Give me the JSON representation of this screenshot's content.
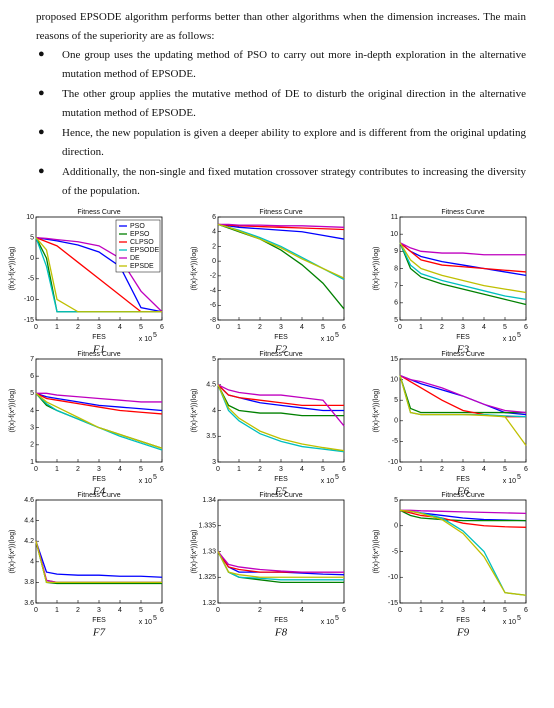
{
  "text": {
    "intro": "proposed EPSODE algorithm performs better than other algorithms when the dimension increases. The main reasons of the superiority are as follows:",
    "bullets": [
      "One group uses the updating method of PSO to carry out more in-depth exploration in the alternative mutation method of EPSODE.",
      "The other group applies the mutative method of DE to disturb the original direction in the alternative mutation method of EPSODE.",
      "Hence, the new population is given a deeper ability to explore and is different from the original updating direction.",
      "Additionally, the non-single and fixed mutation crossover strategy contributes to increasing the diversity of the population."
    ]
  },
  "chart_data": [
    {
      "type": "line",
      "title": "Fitness Curve",
      "xlabel": "FES",
      "ylabel": "(f(x)-f(x*))(log)",
      "x_scale": "x 10",
      "x_scale_exp": "5",
      "caption": "F1",
      "x": [
        0,
        0.5,
        1,
        2,
        3,
        4,
        5,
        6
      ],
      "xlim": [
        0,
        6
      ],
      "xticks": [
        0,
        1,
        2,
        3,
        4,
        5,
        6
      ],
      "ylim": [
        -15,
        10
      ],
      "yticks": [
        -15,
        -10,
        -5,
        0,
        5,
        10
      ],
      "legend": "upper right",
      "series": [
        {
          "name": "PSO",
          "color": "#0000ff",
          "values": [
            5,
            4.6,
            4.2,
            3.2,
            1.5,
            -2,
            -12,
            -13
          ]
        },
        {
          "name": "EPSO",
          "color": "#008000",
          "values": [
            5,
            0,
            -13,
            -13,
            -13,
            -13,
            -13,
            -13
          ]
        },
        {
          "name": "CLPSO",
          "color": "#ff0000",
          "values": [
            5,
            4,
            3,
            -1,
            -5,
            -9,
            -13,
            -13
          ]
        },
        {
          "name": "EPSODE",
          "color": "#00bfbf",
          "values": [
            5,
            -2,
            -13,
            -13,
            -13,
            -13,
            -13,
            -13
          ]
        },
        {
          "name": "DE",
          "color": "#bf00bf",
          "values": [
            5,
            4.8,
            4.5,
            4,
            3,
            0,
            -8,
            -13
          ]
        },
        {
          "name": "EPSDE",
          "color": "#bfbf00",
          "values": [
            5,
            2,
            -10,
            -13,
            -13,
            -13,
            -13,
            -13
          ]
        }
      ]
    },
    {
      "type": "line",
      "title": "Fitness Curve",
      "xlabel": "FES",
      "ylabel": "(f(x)-f(x*))(log)",
      "x_scale": "x 10",
      "x_scale_exp": "5",
      "caption": "F2",
      "x": [
        0,
        0.5,
        1,
        2,
        3,
        4,
        5,
        6
      ],
      "xlim": [
        0,
        6
      ],
      "xticks": [
        0,
        1,
        2,
        3,
        4,
        5,
        6
      ],
      "ylim": [
        -8,
        6
      ],
      "yticks": [
        -8,
        -6,
        -4,
        -2,
        0,
        2,
        4,
        6
      ],
      "series": [
        {
          "color": "#0000ff",
          "values": [
            5,
            4.8,
            4.6,
            4.4,
            4.2,
            4,
            3.5,
            3
          ]
        },
        {
          "color": "#008000",
          "values": [
            5,
            4.5,
            4,
            3,
            1.5,
            -0.5,
            -3,
            -6.5
          ]
        },
        {
          "color": "#ff0000",
          "values": [
            5,
            4.9,
            4.8,
            4.7,
            4.6,
            4.5,
            4.4,
            4.3
          ]
        },
        {
          "color": "#00bfbf",
          "values": [
            5,
            4.6,
            4.2,
            3.2,
            2,
            0.5,
            -1,
            -2.5
          ]
        },
        {
          "color": "#bf00bf",
          "values": [
            5,
            5,
            4.9,
            4.9,
            4.8,
            4.8,
            4.7,
            4.6
          ]
        },
        {
          "color": "#bfbf00",
          "values": [
            5,
            4.6,
            4.1,
            3,
            1.8,
            0.3,
            -1,
            -2.3
          ]
        }
      ]
    },
    {
      "type": "line",
      "title": "Fitness Curve",
      "xlabel": "FES",
      "ylabel": "(f(x)-f(x*))(log)",
      "x_scale": "x 10",
      "x_scale_exp": "5",
      "caption": "F3",
      "x": [
        0,
        0.5,
        1,
        2,
        3,
        4,
        5,
        6
      ],
      "xlim": [
        0,
        6
      ],
      "xticks": [
        0,
        1,
        2,
        3,
        4,
        5,
        6
      ],
      "ylim": [
        5,
        11
      ],
      "yticks": [
        5,
        6,
        7,
        8,
        9,
        10,
        11
      ],
      "series": [
        {
          "color": "#0000ff",
          "values": [
            9.5,
            9,
            8.7,
            8.4,
            8.2,
            8,
            7.8,
            7.6
          ]
        },
        {
          "color": "#008000",
          "values": [
            9.5,
            8,
            7.5,
            7.1,
            6.8,
            6.5,
            6.2,
            5.9
          ]
        },
        {
          "color": "#ff0000",
          "values": [
            9.5,
            9,
            8.5,
            8.2,
            8.1,
            8,
            7.9,
            7.8
          ]
        },
        {
          "color": "#00bfbf",
          "values": [
            9.5,
            8.2,
            7.7,
            7.3,
            7,
            6.7,
            6.4,
            6.2
          ]
        },
        {
          "color": "#bf00bf",
          "values": [
            9.5,
            9.2,
            9,
            8.9,
            8.9,
            8.8,
            8.8,
            8.8
          ]
        },
        {
          "color": "#bfbf00",
          "values": [
            9.5,
            8.5,
            8,
            7.6,
            7.3,
            7,
            6.8,
            6.6
          ]
        }
      ]
    },
    {
      "type": "line",
      "title": "Fitness Curve",
      "xlabel": "FES",
      "ylabel": "(f(x)-f(x*))(log)",
      "x_scale": "x 10",
      "x_scale_exp": "5",
      "caption": "F4",
      "x": [
        0,
        0.5,
        1,
        2,
        3,
        4,
        5,
        6
      ],
      "xlim": [
        0,
        6
      ],
      "xticks": [
        0,
        1,
        2,
        3,
        4,
        5,
        6
      ],
      "ylim": [
        1,
        7
      ],
      "yticks": [
        1,
        2,
        3,
        4,
        5,
        6,
        7
      ],
      "series": [
        {
          "color": "#0000ff",
          "values": [
            5,
            4.8,
            4.7,
            4.5,
            4.3,
            4.2,
            4.1,
            4
          ]
        },
        {
          "color": "#008000",
          "values": [
            5,
            4.3,
            4,
            3.5,
            3,
            2.6,
            2.2,
            1.8
          ]
        },
        {
          "color": "#ff0000",
          "values": [
            5,
            4.7,
            4.6,
            4.4,
            4.2,
            4,
            3.9,
            3.8
          ]
        },
        {
          "color": "#00bfbf",
          "values": [
            5,
            4.4,
            4,
            3.5,
            3,
            2.5,
            2.1,
            1.7
          ]
        },
        {
          "color": "#bf00bf",
          "values": [
            5,
            5,
            4.9,
            4.8,
            4.7,
            4.6,
            4.5,
            4.5
          ]
        },
        {
          "color": "#bfbf00",
          "values": [
            5,
            4.5,
            4.2,
            3.6,
            3,
            2.6,
            2.2,
            1.8
          ]
        }
      ]
    },
    {
      "type": "line",
      "title": "Fitness Curve",
      "xlabel": "FES",
      "ylabel": "(f(x)-f(x*))(log)",
      "x_scale": "x 10",
      "x_scale_exp": "5",
      "caption": "F5",
      "x": [
        0,
        0.5,
        1,
        2,
        3,
        4,
        5,
        6
      ],
      "xlim": [
        0,
        6
      ],
      "xticks": [
        0,
        1,
        2,
        3,
        4,
        5,
        6
      ],
      "ylim": [
        3,
        5
      ],
      "yticks": [
        3,
        3.5,
        4,
        4.5,
        5
      ],
      "series": [
        {
          "color": "#0000ff",
          "values": [
            4.5,
            4.3,
            4.25,
            4.15,
            4.1,
            4.05,
            4,
            4
          ]
        },
        {
          "color": "#008000",
          "values": [
            4.5,
            4.1,
            4,
            3.95,
            3.95,
            3.9,
            3.9,
            3.9
          ]
        },
        {
          "color": "#ff0000",
          "values": [
            4.5,
            4.3,
            4.25,
            4.2,
            4.15,
            4.1,
            4.1,
            4.1
          ]
        },
        {
          "color": "#00bfbf",
          "values": [
            4.5,
            4,
            3.8,
            3.55,
            3.4,
            3.3,
            3.25,
            3.2
          ]
        },
        {
          "color": "#bf00bf",
          "values": [
            4.5,
            4.4,
            4.35,
            4.3,
            4.3,
            4.25,
            4.2,
            3.7
          ]
        },
        {
          "color": "#bfbf00",
          "values": [
            4.5,
            4.05,
            3.85,
            3.6,
            3.45,
            3.35,
            3.28,
            3.22
          ]
        }
      ]
    },
    {
      "type": "line",
      "title": "Fitness Curve",
      "xlabel": "FES",
      "ylabel": "(f(x)-f(x*))(log)",
      "x_scale": "x 10",
      "x_scale_exp": "5",
      "caption": "F6",
      "x": [
        0,
        0.5,
        1,
        2,
        3,
        4,
        5,
        6
      ],
      "xlim": [
        0,
        6
      ],
      "xticks": [
        0,
        1,
        2,
        3,
        4,
        5,
        6
      ],
      "ylim": [
        -10,
        15
      ],
      "yticks": [
        -10,
        -5,
        0,
        5,
        10,
        15
      ],
      "series": [
        {
          "color": "#0000ff",
          "values": [
            11,
            10,
            9,
            7.5,
            6,
            4,
            2,
            1.5
          ]
        },
        {
          "color": "#008000",
          "values": [
            11,
            3,
            2,
            2,
            2,
            2,
            2,
            2
          ]
        },
        {
          "color": "#ff0000",
          "values": [
            11,
            9.5,
            8,
            5,
            2.5,
            1.5,
            1,
            1
          ]
        },
        {
          "color": "#00bfbf",
          "values": [
            11,
            2,
            1.5,
            1.5,
            1.5,
            1.5,
            1.2,
            1
          ]
        },
        {
          "color": "#bf00bf",
          "values": [
            11,
            10,
            9.5,
            8,
            6,
            4,
            2.5,
            2
          ]
        },
        {
          "color": "#bfbf00",
          "values": [
            11,
            2,
            1.5,
            1.5,
            1.5,
            1.3,
            1,
            -6
          ]
        }
      ]
    },
    {
      "type": "line",
      "title": "Fitness Curve",
      "xlabel": "FES",
      "ylabel": "(f(x)-f(x*))(log)",
      "x_scale": "x 10",
      "x_scale_exp": "5",
      "caption": "F7",
      "x": [
        0,
        0.5,
        1,
        2,
        3,
        4,
        5,
        6
      ],
      "xlim": [
        0,
        6
      ],
      "xticks": [
        0,
        1,
        2,
        3,
        4,
        5,
        6
      ],
      "ylim": [
        3.6,
        4.6
      ],
      "yticks": [
        3.6,
        3.8,
        4,
        4.2,
        4.4,
        4.6
      ],
      "series": [
        {
          "color": "#0000ff",
          "values": [
            4.2,
            3.9,
            3.88,
            3.87,
            3.87,
            3.86,
            3.86,
            3.85
          ]
        },
        {
          "color": "#008000",
          "values": [
            4.2,
            3.8,
            3.79,
            3.79,
            3.79,
            3.79,
            3.79,
            3.79
          ]
        },
        {
          "color": "#ff0000",
          "values": [
            4.2,
            3.82,
            3.8,
            3.8,
            3.8,
            3.8,
            3.8,
            3.8
          ]
        },
        {
          "color": "#00bfbf",
          "values": [
            4.2,
            3.8,
            3.8,
            3.8,
            3.8,
            3.8,
            3.8,
            3.8
          ]
        },
        {
          "color": "#bf00bf",
          "values": [
            4.2,
            3.82,
            3.8,
            3.8,
            3.8,
            3.8,
            3.8,
            3.8
          ]
        },
        {
          "color": "#bfbf00",
          "values": [
            4.2,
            3.8,
            3.8,
            3.8,
            3.8,
            3.8,
            3.8,
            3.8
          ]
        }
      ]
    },
    {
      "type": "line",
      "title": "Fitness Curve",
      "xlabel": "FES",
      "ylabel": "(f(x)-f(x*))(log)",
      "x_scale": "x 10",
      "x_scale_exp": "5",
      "caption": "F8",
      "x": [
        0,
        0.5,
        1,
        2,
        3,
        4,
        5,
        6
      ],
      "xlim": [
        0,
        6
      ],
      "xticks": [
        0,
        2,
        4,
        6
      ],
      "ylim": [
        1.32,
        1.34
      ],
      "yticks": [
        1.32,
        1.325,
        1.33,
        1.335,
        1.34
      ],
      "series": [
        {
          "color": "#0000ff",
          "values": [
            1.33,
            1.327,
            1.326,
            1.326,
            1.326,
            1.3258,
            1.3256,
            1.3255
          ]
        },
        {
          "color": "#008000",
          "values": [
            1.33,
            1.326,
            1.325,
            1.3245,
            1.324,
            1.324,
            1.324,
            1.324
          ]
        },
        {
          "color": "#ff0000",
          "values": [
            1.33,
            1.327,
            1.3265,
            1.326,
            1.326,
            1.326,
            1.326,
            1.326
          ]
        },
        {
          "color": "#00bfbf",
          "values": [
            1.33,
            1.326,
            1.325,
            1.3248,
            1.3245,
            1.3245,
            1.3245,
            1.3245
          ]
        },
        {
          "color": "#bf00bf",
          "values": [
            1.33,
            1.3275,
            1.327,
            1.3265,
            1.3262,
            1.326,
            1.326,
            1.326
          ]
        },
        {
          "color": "#bfbf00",
          "values": [
            1.33,
            1.326,
            1.3255,
            1.325,
            1.325,
            1.325,
            1.325,
            1.325
          ]
        }
      ]
    },
    {
      "type": "line",
      "title": "Fitness Curve",
      "xlabel": "FES",
      "ylabel": "(f(x)-f(x*))(log)",
      "x_scale": "x 10",
      "x_scale_exp": "5",
      "caption": "F9",
      "x": [
        0,
        0.5,
        1,
        2,
        3,
        4,
        5,
        6
      ],
      "xlim": [
        0,
        6
      ],
      "xticks": [
        0,
        1,
        2,
        3,
        4,
        5,
        6
      ],
      "ylim": [
        -15,
        5
      ],
      "yticks": [
        -15,
        -10,
        -5,
        0,
        5
      ],
      "series": [
        {
          "color": "#0000ff",
          "values": [
            3,
            2.8,
            2.5,
            2,
            1.5,
            1.2,
            1.1,
            1
          ]
        },
        {
          "color": "#008000",
          "values": [
            3,
            2,
            1.5,
            1.2,
            1,
            1,
            1,
            1
          ]
        },
        {
          "color": "#ff0000",
          "values": [
            3,
            2.5,
            2,
            1.5,
            0.5,
            0,
            -0.2,
            -0.3
          ]
        },
        {
          "color": "#00bfbf",
          "values": [
            3,
            2.8,
            2.5,
            1.5,
            -1,
            -5,
            -13,
            -13.5
          ]
        },
        {
          "color": "#bf00bf",
          "values": [
            3,
            3,
            2.9,
            2.8,
            2.7,
            2.6,
            2.5,
            2.4
          ]
        },
        {
          "color": "#bfbf00",
          "values": [
            3,
            2.8,
            2.4,
            1.2,
            -1.5,
            -6,
            -13,
            -13.5
          ]
        }
      ]
    }
  ]
}
